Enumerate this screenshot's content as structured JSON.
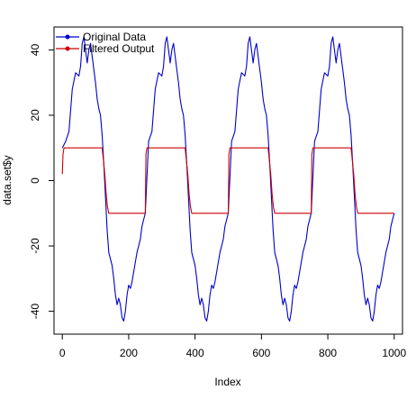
{
  "chart_data": {
    "type": "line",
    "xlabel": "Index",
    "ylabel": "data.set$y",
    "xlim": [
      -25,
      1025
    ],
    "ylim": [
      -47,
      47
    ],
    "x_ticks": [
      0,
      200,
      400,
      600,
      800,
      1000
    ],
    "y_ticks": [
      -40,
      -20,
      0,
      20,
      40
    ],
    "grid": false,
    "legend_position": "top-left",
    "period": 250,
    "series": [
      {
        "name": "Original Data",
        "color": "#0000cd",
        "points": [
          [
            0,
            10
          ],
          [
            10,
            12
          ],
          [
            20,
            15
          ],
          [
            30,
            28
          ],
          [
            40,
            33
          ],
          [
            50,
            32
          ],
          [
            55,
            35
          ],
          [
            60,
            42
          ],
          [
            65,
            44
          ],
          [
            70,
            40
          ],
          [
            75,
            36
          ],
          [
            80,
            40
          ],
          [
            85,
            42
          ],
          [
            90,
            38
          ],
          [
            95,
            34
          ],
          [
            100,
            30
          ],
          [
            105,
            25
          ],
          [
            110,
            22
          ],
          [
            115,
            20
          ],
          [
            120,
            14
          ],
          [
            125,
            5
          ],
          [
            130,
            -5
          ],
          [
            135,
            -15
          ],
          [
            140,
            -22
          ],
          [
            145,
            -24
          ],
          [
            150,
            -26
          ],
          [
            155,
            -30
          ],
          [
            160,
            -35
          ],
          [
            165,
            -38
          ],
          [
            170,
            -36
          ],
          [
            175,
            -38
          ],
          [
            180,
            -42
          ],
          [
            185,
            -43
          ],
          [
            190,
            -40
          ],
          [
            195,
            -35
          ],
          [
            200,
            -32
          ],
          [
            205,
            -33
          ],
          [
            210,
            -31
          ],
          [
            215,
            -28
          ],
          [
            220,
            -25
          ],
          [
            225,
            -22
          ],
          [
            230,
            -20
          ],
          [
            235,
            -18
          ],
          [
            240,
            -14
          ],
          [
            245,
            -12
          ],
          [
            250,
            -10
          ]
        ]
      },
      {
        "name": "Filtered Output",
        "color": "#cc0000",
        "points": [
          [
            0,
            2
          ],
          [
            2,
            8
          ],
          [
            5,
            10
          ],
          [
            120,
            10
          ],
          [
            124,
            6
          ],
          [
            128,
            2
          ],
          [
            132,
            -4
          ],
          [
            136,
            -8
          ],
          [
            140,
            -10
          ],
          [
            250,
            -10
          ]
        ]
      }
    ]
  },
  "colors": {
    "original": "#0000cd",
    "filtered": "#cc0000",
    "axis": "#000000"
  }
}
